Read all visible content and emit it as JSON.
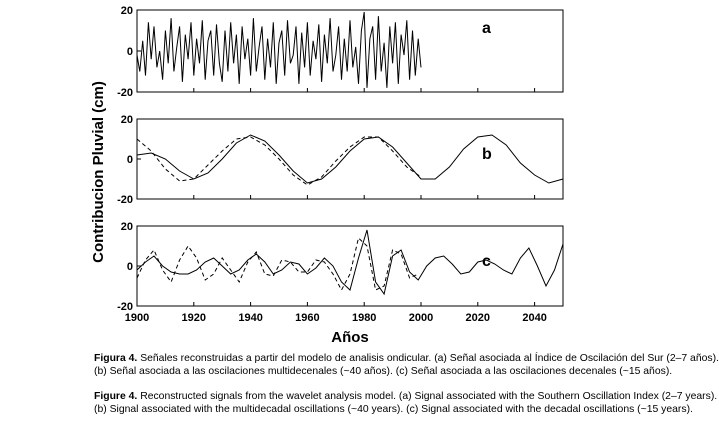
{
  "chart_data": {
    "type": "line",
    "ylabel": "Contribucion Pluvial (cm)",
    "xlabel": "Años",
    "xlim": [
      1900,
      2050
    ],
    "xticks": [
      1900,
      1920,
      1940,
      1960,
      1980,
      2000,
      2020,
      2040
    ],
    "panels": [
      {
        "label": "a",
        "ylim": [
          -20,
          20
        ],
        "yticks": [
          20,
          0,
          -20
        ],
        "series": [
          {
            "style": "solid",
            "x_start": 1900,
            "x_end": 2000,
            "x": [
              1900,
              1901,
              1902,
              1903,
              1904,
              1905,
              1906,
              1907,
              1908,
              1909,
              1910,
              1911,
              1912,
              1913,
              1914,
              1915,
              1916,
              1917,
              1918,
              1919,
              1920,
              1921,
              1922,
              1923,
              1924,
              1925,
              1926,
              1927,
              1928,
              1929,
              1930,
              1931,
              1932,
              1933,
              1934,
              1935,
              1936,
              1937,
              1938,
              1939,
              1940,
              1941,
              1942,
              1943,
              1944,
              1945,
              1946,
              1947,
              1948,
              1949,
              1950,
              1951,
              1952,
              1953,
              1954,
              1955,
              1956,
              1957,
              1958,
              1959,
              1960,
              1961,
              1962,
              1963,
              1964,
              1965,
              1966,
              1967,
              1968,
              1969,
              1970,
              1971,
              1972,
              1973,
              1974,
              1975,
              1976,
              1977,
              1978,
              1979,
              1980,
              1981,
              1982,
              1983,
              1984,
              1985,
              1986,
              1987,
              1988,
              1989,
              1990,
              1991,
              1992,
              1993,
              1994,
              1995,
              1996,
              1997,
              1998,
              1999,
              2000
            ],
            "y": [
              -2,
              -10,
              5,
              -12,
              14,
              -4,
              12,
              -8,
              0,
              -14,
              10,
              -6,
              16,
              -10,
              2,
              12,
              -15,
              8,
              -4,
              14,
              -12,
              6,
              -6,
              15,
              -14,
              5,
              10,
              -12,
              13,
              -6,
              -15,
              10,
              -10,
              14,
              -6,
              8,
              -16,
              12,
              -4,
              6,
              -12,
              16,
              -10,
              2,
              12,
              -14,
              6,
              -8,
              14,
              -16,
              4,
              10,
              -12,
              15,
              -6,
              -2,
              12,
              -16,
              9,
              -8,
              14,
              -12,
              5,
              -4,
              13,
              -15,
              8,
              -6,
              16,
              -10,
              -2,
              12,
              -14,
              6,
              -10,
              15,
              -8,
              2,
              -16,
              10,
              19,
              -18,
              6,
              12,
              -14,
              17,
              -10,
              4,
              -18,
              12,
              -6,
              14,
              -16,
              8,
              -2,
              15,
              -14,
              10,
              -12,
              6,
              -8
            ]
          }
        ]
      },
      {
        "label": "b",
        "ylim": [
          -20,
          20
        ],
        "yticks": [
          20,
          0,
          -20
        ],
        "series": [
          {
            "style": "solid",
            "x": [
              1900,
              1905,
              1910,
              1915,
              1920,
              1925,
              1930,
              1935,
              1940,
              1945,
              1950,
              1955,
              1960,
              1965,
              1970,
              1975,
              1980,
              1985,
              1990,
              1995,
              2000,
              2005,
              2010,
              2015,
              2020,
              2025,
              2030,
              2035,
              2040,
              2045,
              2050
            ],
            "y": [
              2,
              3,
              0,
              -6,
              -10,
              -7,
              0,
              8,
              12,
              9,
              2,
              -6,
              -12,
              -10,
              -4,
              4,
              10,
              11,
              6,
              -2,
              -10,
              -10,
              -4,
              5,
              11,
              12,
              7,
              -2,
              -8,
              -12,
              -10
            ]
          },
          {
            "style": "dashed",
            "x": [
              1900,
              1905,
              1910,
              1915,
              1920,
              1925,
              1930,
              1935,
              1940,
              1945,
              1950,
              1955,
              1960,
              1965,
              1970,
              1975,
              1980,
              1985,
              1990,
              1995,
              2000
            ],
            "y": [
              10,
              4,
              -5,
              -11,
              -10,
              -3,
              4,
              10,
              11,
              7,
              0,
              -8,
              -13,
              -9,
              -1,
              6,
              11,
              11,
              4,
              -4,
              -9
            ]
          }
        ]
      },
      {
        "label": "c",
        "ylim": [
          -20,
          20
        ],
        "yticks": [
          20,
          0,
          -20
        ],
        "series": [
          {
            "style": "solid",
            "x": [
              1900,
              1903,
              1906,
              1909,
              1912,
              1915,
              1918,
              1921,
              1924,
              1927,
              1930,
              1933,
              1936,
              1939,
              1942,
              1945,
              1948,
              1951,
              1954,
              1957,
              1960,
              1963,
              1966,
              1969,
              1972,
              1975,
              1978,
              1981,
              1984,
              1987,
              1990,
              1993,
              1996,
              1999,
              2002,
              2005,
              2008,
              2011,
              2014,
              2017,
              2020,
              2023,
              2026,
              2029,
              2032,
              2035,
              2038,
              2041,
              2044,
              2047,
              2050
            ],
            "y": [
              -2,
              2,
              5,
              0,
              -3,
              -4,
              -4,
              -2,
              2,
              4,
              0,
              -4,
              -2,
              3,
              6,
              2,
              -4,
              -2,
              2,
              1,
              -4,
              -1,
              4,
              0,
              -8,
              -12,
              4,
              18,
              -8,
              -14,
              5,
              8,
              -3,
              -7,
              0,
              4,
              5,
              1,
              -4,
              -3,
              2,
              3,
              1,
              -2,
              -4,
              4,
              9,
              0,
              -10,
              -2,
              11
            ]
          },
          {
            "style": "dashed",
            "x": [
              1900,
              1903,
              1906,
              1909,
              1912,
              1915,
              1918,
              1921,
              1924,
              1927,
              1930,
              1933,
              1936,
              1939,
              1942,
              1945,
              1948,
              1951,
              1954,
              1957,
              1960,
              1963,
              1966,
              1969,
              1972,
              1975,
              1978,
              1981,
              1984,
              1987,
              1990,
              1993,
              1996,
              1999
            ],
            "y": [
              -6,
              3,
              8,
              -2,
              -8,
              3,
              10,
              4,
              -7,
              -4,
              4,
              -2,
              -8,
              2,
              7,
              -4,
              -5,
              3,
              2,
              -3,
              -3,
              3,
              2,
              -4,
              -12,
              -4,
              14,
              10,
              -12,
              -10,
              8,
              6,
              -6,
              -4
            ]
          }
        ]
      }
    ]
  },
  "caption": {
    "es_prefix": "Figura 4.",
    "es_line1": " Señales reconstruidas a partir del modelo de analisis ondicular. (a) Señal asociada al Índice de Oscilación del Sur (2–7 años).",
    "es_line2": "(b) Señal asociada a las oscilaciones multidecenales (~40 años). (c) Señal asociada a las oscilaciones decenales (~15 años).",
    "en_prefix": "Figure 4.",
    "en_line1": " Reconstructed signals from the wavelet analysis model. (a) Signal associated with the Southern Oscillation Index (2–7 years).",
    "en_line2": "(b) Signal associated with the multidecadal oscillations (~40 years). (c) Signal associated with the decadal oscillations (~15 years)."
  }
}
